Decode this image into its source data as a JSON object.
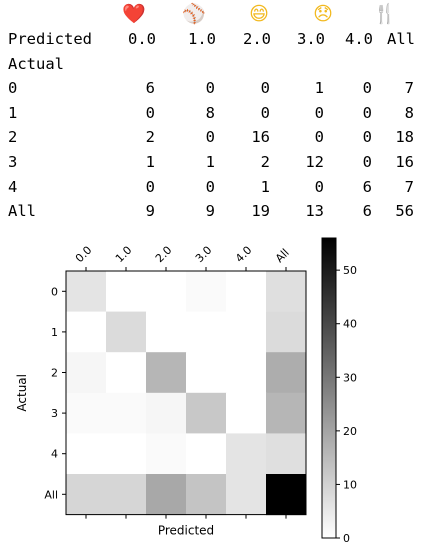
{
  "emojis": [
    {
      "name": "heart-icon",
      "glyph": "❤️",
      "color": "#e0212e"
    },
    {
      "name": "baseball-icon",
      "glyph": "⚾",
      "color": "#c0392b"
    },
    {
      "name": "grinning-face-icon",
      "glyph": "😄",
      "color": "#f2b91f"
    },
    {
      "name": "disappointed-face-icon",
      "glyph": "😞",
      "color": "#f2b91f"
    },
    {
      "name": "fork-knife-icon",
      "glyph": "🍴",
      "color": "#9a9a9a"
    }
  ],
  "table": {
    "predicted_label": "Predicted",
    "actual_label": "Actual",
    "columns": [
      "0.0",
      "1.0",
      "2.0",
      "3.0",
      "4.0",
      "All"
    ],
    "row_labels": [
      "0",
      "1",
      "2",
      "3",
      "4",
      "All"
    ],
    "rows": [
      [
        6,
        0,
        0,
        1,
        0,
        7
      ],
      [
        0,
        8,
        0,
        0,
        0,
        8
      ],
      [
        2,
        0,
        16,
        0,
        0,
        18
      ],
      [
        1,
        1,
        2,
        12,
        0,
        16
      ],
      [
        0,
        0,
        1,
        0,
        6,
        7
      ],
      [
        9,
        9,
        19,
        13,
        6,
        56
      ]
    ]
  },
  "chart_data": {
    "type": "heatmap",
    "x_categories": [
      "0.0",
      "1.0",
      "2.0",
      "3.0",
      "4.0",
      "All"
    ],
    "y_categories": [
      "0",
      "1",
      "2",
      "3",
      "4",
      "All"
    ],
    "values": [
      [
        6,
        0,
        0,
        1,
        0,
        7
      ],
      [
        0,
        8,
        0,
        0,
        0,
        8
      ],
      [
        2,
        0,
        16,
        0,
        0,
        18
      ],
      [
        1,
        1,
        2,
        12,
        0,
        16
      ],
      [
        0,
        0,
        1,
        0,
        6,
        7
      ],
      [
        9,
        9,
        19,
        13,
        6,
        56
      ]
    ],
    "xlabel": "Predicted",
    "ylabel": "Actual",
    "colormap": "gray_r",
    "colorbar": {
      "range": [
        0,
        56
      ],
      "ticks": [
        0,
        10,
        20,
        30,
        40,
        50
      ]
    }
  }
}
